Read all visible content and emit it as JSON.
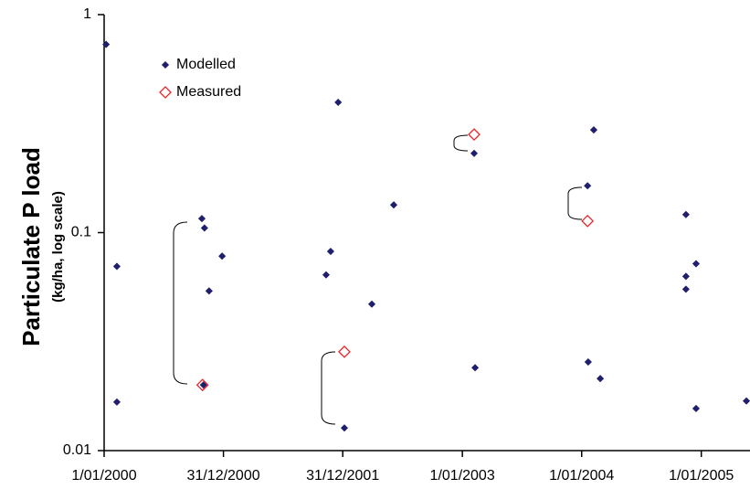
{
  "chart_data": {
    "type": "scatter",
    "y_label": "Particulate P load",
    "y_sublabel": "(kg/ha, log scale)",
    "log_y": true,
    "ylim": [
      0.01,
      1
    ],
    "yticks": [
      0.01,
      0.1,
      1
    ],
    "xlim": [
      "2000-01-01",
      "2005-05-30"
    ],
    "xticks": [
      {
        "value": "2000-01-01",
        "label": "1/01/2000"
      },
      {
        "value": "2000-12-31",
        "label": "31/12/2000"
      },
      {
        "value": "2001-12-31",
        "label": "31/12/2001"
      },
      {
        "value": "2003-01-01",
        "label": "1/01/2003"
      },
      {
        "value": "2004-01-01",
        "label": "1/01/2004"
      },
      {
        "value": "2005-01-01",
        "label": "1/01/2005"
      }
    ],
    "legend": "upper left",
    "series": [
      {
        "name": "Modelled",
        "color": "#1f1f6e",
        "marker": "filled",
        "x": [
          "2000-01-07",
          "2000-02-09",
          "2000-02-09",
          "2000-10-26",
          "2000-11-03",
          "2000-11-17",
          "2000-10-31",
          "2000-12-27",
          "2001-11-10",
          "2001-11-24",
          "2001-12-17",
          "2002-01-05",
          "2002-03-30",
          "2002-06-05",
          "2003-02-06",
          "2003-02-09",
          "2004-01-19",
          "2004-02-07",
          "2004-01-21",
          "2004-02-27",
          "2004-11-15",
          "2004-11-15",
          "2004-11-15",
          "2004-12-16",
          "2004-12-16",
          "2005-05-19"
        ],
        "values": [
          0.73,
          0.07,
          0.0167,
          0.116,
          0.105,
          0.054,
          0.02,
          0.078,
          0.064,
          0.082,
          0.396,
          0.0127,
          0.047,
          0.134,
          0.231,
          0.024,
          0.164,
          0.296,
          0.0255,
          0.0214,
          0.121,
          0.063,
          0.055,
          0.072,
          0.0156,
          0.0169
        ]
      },
      {
        "name": "Measured",
        "color": "#e8262a",
        "marker": "open",
        "x": [
          "2000-10-28",
          "2002-01-05",
          "2003-02-06",
          "2004-01-19"
        ],
        "values": [
          0.02,
          0.0284,
          0.282,
          0.113
        ]
      }
    ]
  }
}
